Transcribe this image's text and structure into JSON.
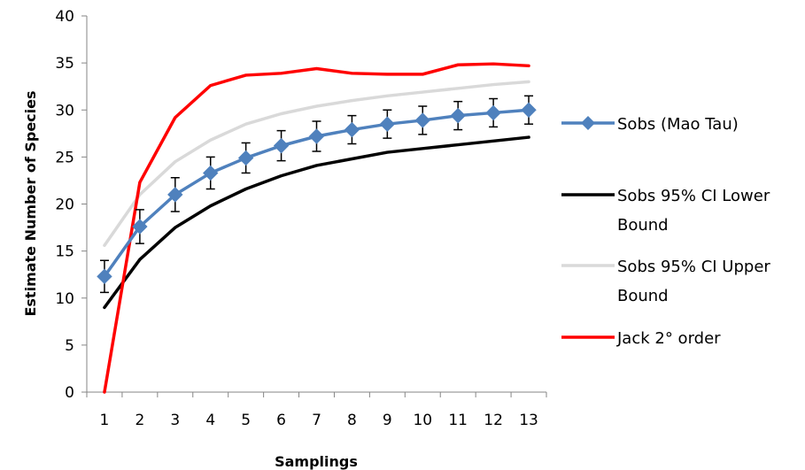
{
  "chart_data": {
    "type": "line",
    "xlabel": "Samplings",
    "ylabel": "Estimate Number of Species",
    "x": [
      1,
      2,
      3,
      4,
      5,
      6,
      7,
      8,
      9,
      10,
      11,
      12,
      13
    ],
    "xlim": [
      0.5,
      13.5
    ],
    "ylim": [
      0,
      40
    ],
    "yticks": [
      0,
      5,
      10,
      15,
      20,
      25,
      30,
      35,
      40
    ],
    "legend_position": "right",
    "series": [
      {
        "name": "Sobs (Mao Tau)",
        "color": "#4F81BD",
        "marker": "diamond",
        "values": [
          12.3,
          17.6,
          21.0,
          23.3,
          24.9,
          26.2,
          27.2,
          27.9,
          28.5,
          28.9,
          29.4,
          29.7,
          30.0
        ],
        "error": [
          1.7,
          1.8,
          1.8,
          1.7,
          1.6,
          1.6,
          1.6,
          1.5,
          1.5,
          1.5,
          1.5,
          1.5,
          1.5
        ]
      },
      {
        "name": "Sobs 95% CI Lower Bound",
        "color": "#000000",
        "values": [
          9.0,
          14.1,
          17.5,
          19.8,
          21.6,
          23.0,
          24.1,
          24.8,
          25.5,
          25.9,
          26.3,
          26.7,
          27.1
        ]
      },
      {
        "name": "Sobs 95% CI Upper Bound",
        "color": "#D9D9D9",
        "values": [
          15.6,
          21.0,
          24.5,
          26.8,
          28.5,
          29.6,
          30.4,
          31.0,
          31.5,
          31.9,
          32.3,
          32.7,
          33.0
        ]
      },
      {
        "name": "Jack 2° order",
        "color": "#FF0000",
        "values": [
          0.0,
          22.3,
          29.2,
          32.6,
          33.7,
          33.9,
          34.4,
          33.9,
          33.8,
          33.8,
          34.8,
          34.9,
          34.7
        ]
      }
    ]
  }
}
